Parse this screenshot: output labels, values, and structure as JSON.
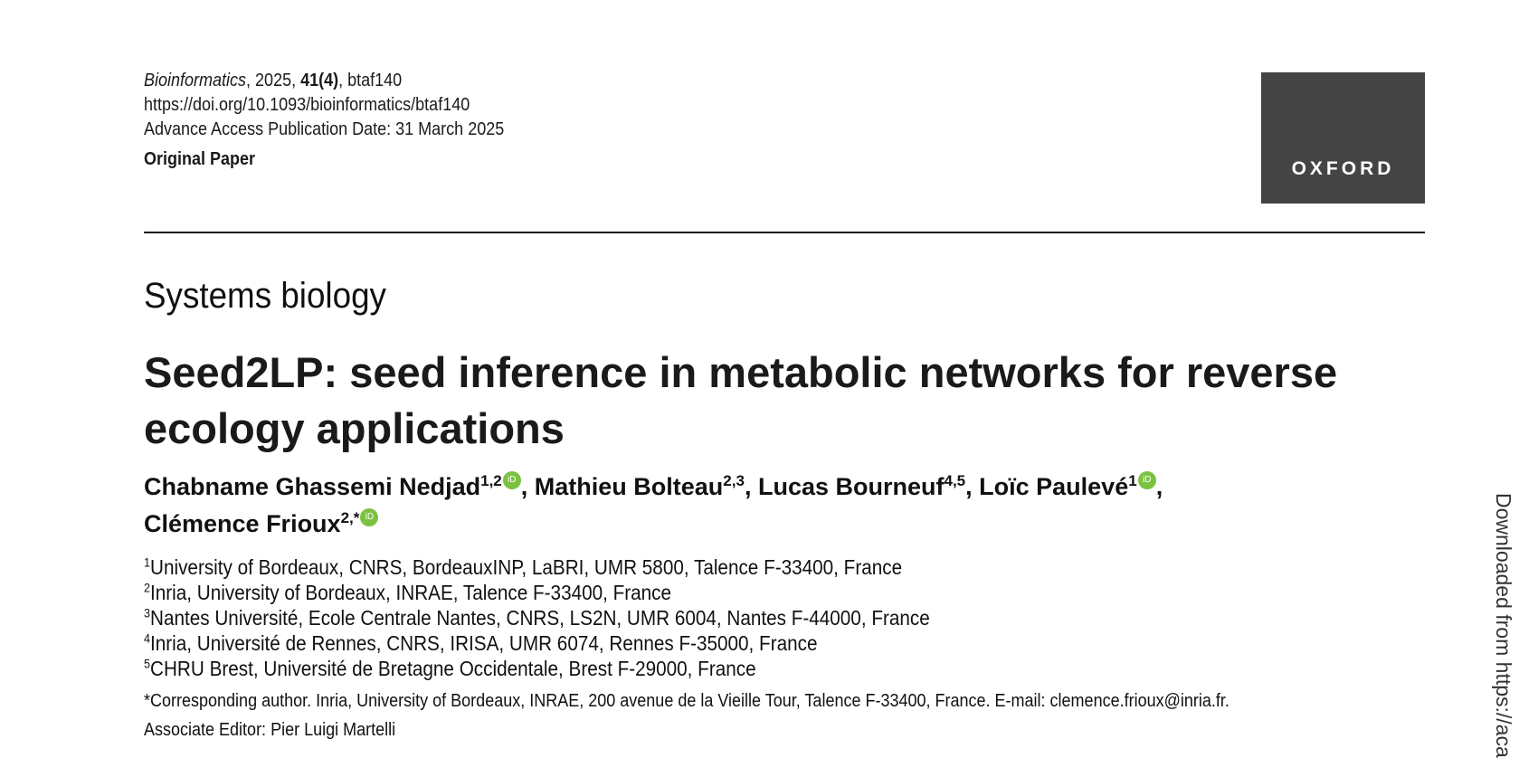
{
  "header": {
    "journal": "Bioinformatics",
    "year_sep": ", 2025, ",
    "volume": "41(4)",
    "article_id": ", btaf140",
    "doi": "https://doi.org/10.1093/bioinformatics/btaf140",
    "access_date": "Advance Access Publication Date: 31 March 2025",
    "article_type": "Original Paper"
  },
  "logo": {
    "text": "OXFORD",
    "color": "#444444"
  },
  "section": "Systems biology",
  "title": "Seed2LP: seed inference in metabolic networks for reverse ecology applications",
  "authors": [
    {
      "name": "Chabname Ghassemi Nedjad",
      "sup": "1,2",
      "orcid": true
    },
    {
      "name": "Mathieu Bolteau",
      "sup": "2,3",
      "orcid": false
    },
    {
      "name": "Lucas Bourneuf",
      "sup": "4,5",
      "orcid": false
    },
    {
      "name": "Loïc Paulevé",
      "sup": "1",
      "orcid": true
    },
    {
      "name": "Clémence Frioux",
      "sup": "2,*",
      "orcid": true
    }
  ],
  "author_sep": ", ",
  "orcid_color": "#7cc242",
  "affiliations": [
    {
      "num": "1",
      "text": "University of Bordeaux, CNRS, BordeauxINP, LaBRI, UMR 5800, Talence F-33400, France"
    },
    {
      "num": "2",
      "text": "Inria, University of Bordeaux, INRAE, Talence F-33400, France"
    },
    {
      "num": "3",
      "text": "Nantes Université, Ecole Centrale Nantes, CNRS, LS2N, UMR 6004, Nantes F-44000, France"
    },
    {
      "num": "4",
      "text": "Inria, Université de Rennes, CNRS, IRISA, UMR 6074, Rennes F-35000, France"
    },
    {
      "num": "5",
      "text": "CHRU Brest, Université de Bretagne Occidentale, Brest F-29000, France"
    }
  ],
  "corresponding": "*Corresponding author. Inria, University of Bordeaux, INRAE, 200 avenue de la Vieille Tour, Talence F-33400, France. E-mail: clemence.frioux@inria.fr.",
  "associate_editor": "Associate Editor: Pier Luigi Martelli",
  "download_notice": "Downloaded from https://aca"
}
